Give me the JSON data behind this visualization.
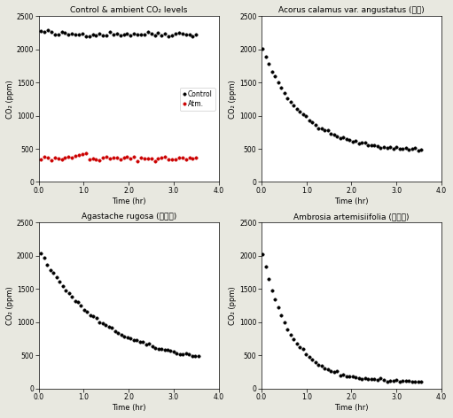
{
  "title_topleft": "Control & ambient CO₂ levels",
  "title_topright": "Acorus calamus var. angustatus (창포)",
  "title_bottomleft": "Agastache rugosa (배초향)",
  "title_bottomright": "Ambrosia artemisiifolia (돼지풀)",
  "ylabel": "CO₂ (ppm)",
  "xlabel": "Time (hr)",
  "legend_control": "Control",
  "legend_atm": "Atm.",
  "ylim": [
    0,
    2500
  ],
  "xlim": [
    0,
    4.0
  ],
  "xticks": [
    0.0,
    1.0,
    2.0,
    3.0,
    4.0
  ],
  "yticks": [
    0,
    500,
    1000,
    1500,
    2000,
    2500
  ],
  "control_color": "black",
  "atm_color": "#cc0000",
  "plant_color": "black",
  "markersize": 2.5,
  "title_fontsize": 6.5,
  "label_fontsize": 6.0,
  "tick_fontsize": 5.5,
  "legend_fontsize": 5.5,
  "background": "#e8e8e0",
  "plot_background": "white"
}
